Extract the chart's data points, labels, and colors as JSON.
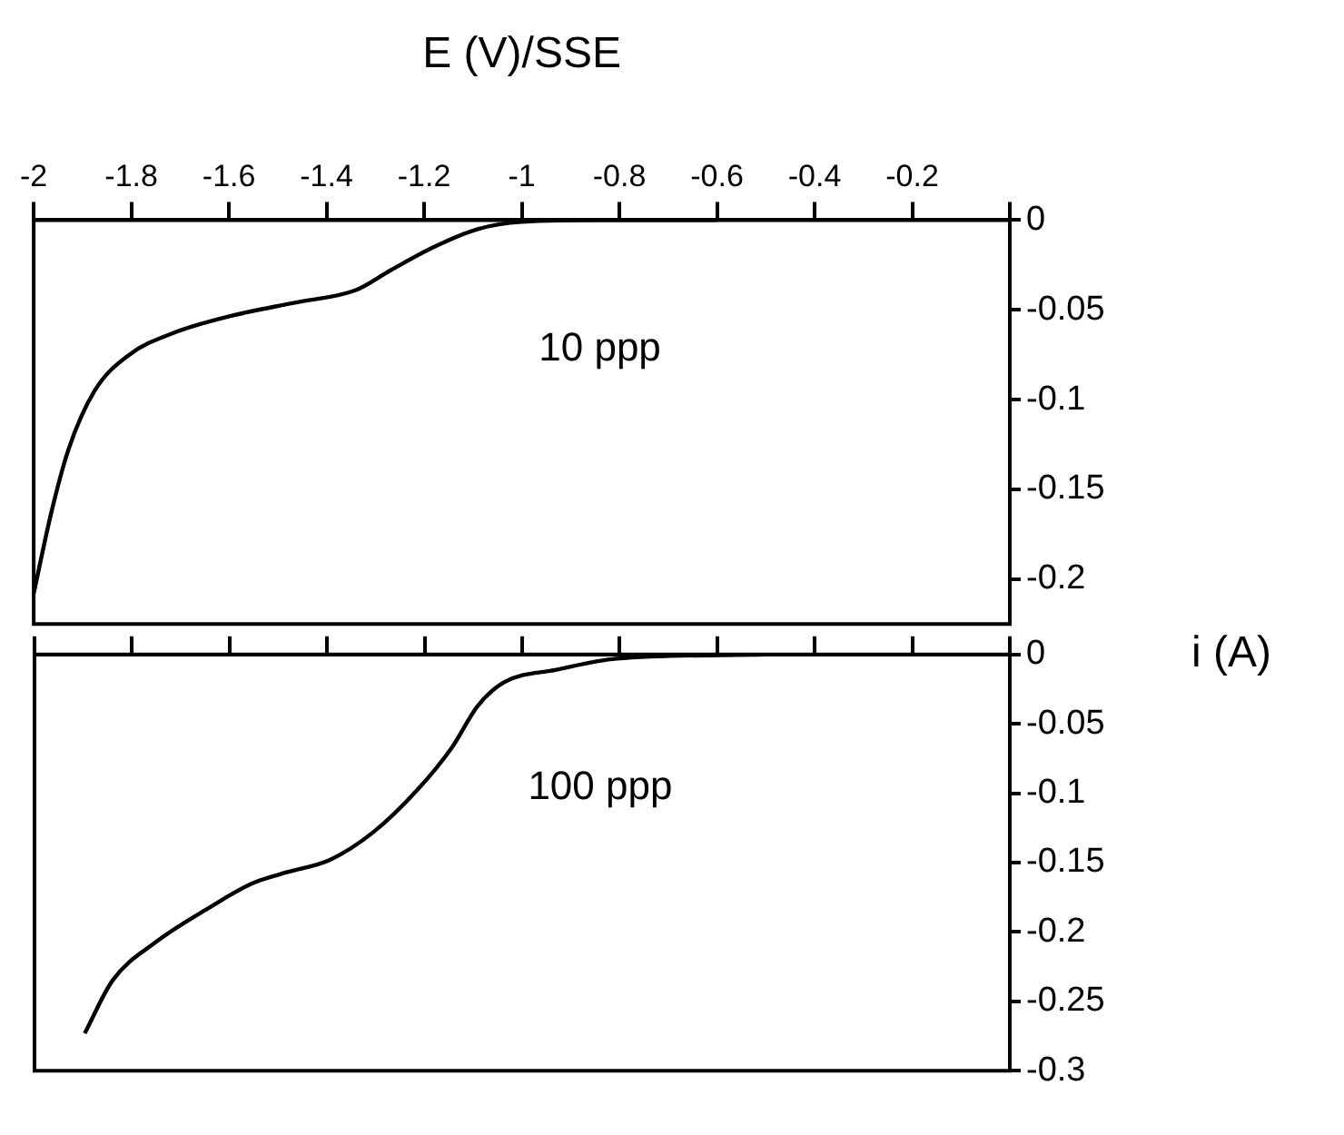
{
  "chart_data": [
    {
      "type": "line",
      "xlabel": "E (V)/SSE",
      "annotations": [
        "10 ppp"
      ],
      "xlim": [
        -2,
        0
      ],
      "xticks": [
        -2,
        -1.8,
        -1.6,
        -1.4,
        -1.2,
        -1,
        -0.8,
        -0.6,
        -0.4,
        -0.2,
        {
          "value": 0,
          "label": null
        }
      ],
      "ylim": [
        -0.225,
        0
      ],
      "yticks": [
        0,
        -0.05,
        -0.1,
        -0.15,
        -0.2
      ],
      "series": [
        {
          "color": "#000000",
          "x": [
            -2,
            -1.964,
            -1.929,
            -1.875,
            -1.804,
            -1.715,
            -1.59,
            -1.465,
            -1.34,
            -1.269,
            -1.18,
            -1.09,
            -1.0,
            -0.82,
            -0.6
          ],
          "values": [
            -0.208,
            -0.163,
            -0.128,
            -0.095,
            -0.075,
            -0.063,
            -0.053,
            -0.046,
            -0.039,
            -0.028,
            -0.015,
            -0.005,
            -0.001,
            0,
            0
          ]
        }
      ]
    },
    {
      "type": "line",
      "ylabel": "i (A)",
      "annotations": [
        "100 ppp"
      ],
      "tick_labels": "y",
      "xlim": [
        -2,
        0
      ],
      "xticks": [
        -2,
        -1.8,
        -1.6,
        -1.4,
        -1.2,
        -1,
        -0.8,
        -0.6,
        -0.4,
        -0.2,
        0
      ],
      "ylim": [
        -0.3,
        0
      ],
      "yticks": [
        0,
        -0.05,
        -0.1,
        -0.15,
        -0.2,
        -0.25,
        -0.3
      ],
      "series": [
        {
          "color": "#000000",
          "x": [
            -1.897,
            -1.84,
            -1.75,
            -1.644,
            -1.554,
            -1.483,
            -1.394,
            -1.305,
            -1.216,
            -1.144,
            -1.091,
            -1.037,
            -0.93,
            -0.806,
            -0.5
          ],
          "values": [
            -0.273,
            -0.235,
            -0.207,
            -0.183,
            -0.165,
            -0.157,
            -0.148,
            -0.128,
            -0.098,
            -0.067,
            -0.037,
            -0.02,
            -0.011,
            -0.003,
            0
          ]
        }
      ]
    }
  ]
}
